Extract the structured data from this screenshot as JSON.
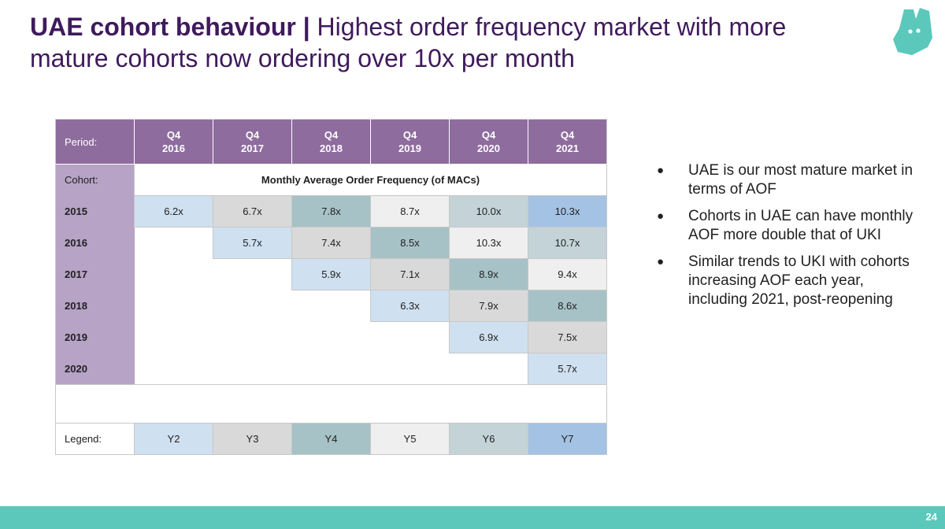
{
  "title": {
    "bold": "UAE cohort behaviour",
    "separator": " | ",
    "rest": "Highest order frequency market with more mature cohorts now ordering over 10x per month"
  },
  "table": {
    "period_label": "Period:",
    "periods": [
      {
        "q": "Q4",
        "year": "2016"
      },
      {
        "q": "Q4",
        "year": "2017"
      },
      {
        "q": "Q4",
        "year": "2018"
      },
      {
        "q": "Q4",
        "year": "2019"
      },
      {
        "q": "Q4",
        "year": "2020"
      },
      {
        "q": "Q4",
        "year": "2021"
      }
    ],
    "cohort_label": "Cohort:",
    "metric_label": "Monthly Average Order Frequency (of MACs)",
    "rows": [
      {
        "cohort": "2015",
        "values": [
          "6.2x",
          "6.7x",
          "7.8x",
          "8.7x",
          "10.0x",
          "10.3x"
        ]
      },
      {
        "cohort": "2016",
        "values": [
          "5.7x",
          "7.4x",
          "8.5x",
          "10.3x",
          "10.7x"
        ]
      },
      {
        "cohort": "2017",
        "values": [
          "5.9x",
          "7.1x",
          "8.9x",
          "9.4x"
        ]
      },
      {
        "cohort": "2018",
        "values": [
          "6.3x",
          "7.9x",
          "8.6x"
        ]
      },
      {
        "cohort": "2019",
        "values": [
          "6.9x",
          "7.5x"
        ]
      },
      {
        "cohort": "2020",
        "values": [
          "5.7x"
        ]
      }
    ],
    "legend_label": "Legend:",
    "legend": [
      "Y2",
      "Y3",
      "Y4",
      "Y5",
      "Y6",
      "Y7"
    ],
    "legend_colors": [
      "#cfe0f0",
      "#d9d9d9",
      "#a7c2c6",
      "#efefef",
      "#c3d3d8",
      "#a4c2e4"
    ]
  },
  "bullets": [
    "UAE is our most mature market in terms of AOF",
    "Cohorts in UAE can have monthly AOF more double that of UKI",
    "Similar trends to UKI with cohorts increasing AOF each year, including 2021, post-reopening"
  ],
  "brand": {
    "logo_icon": "kangaroo-logo-icon",
    "accent": "#5bc8bb",
    "title_color": "#3f1a5c",
    "header_color": "#8e6c9e"
  },
  "page_number": "24"
}
